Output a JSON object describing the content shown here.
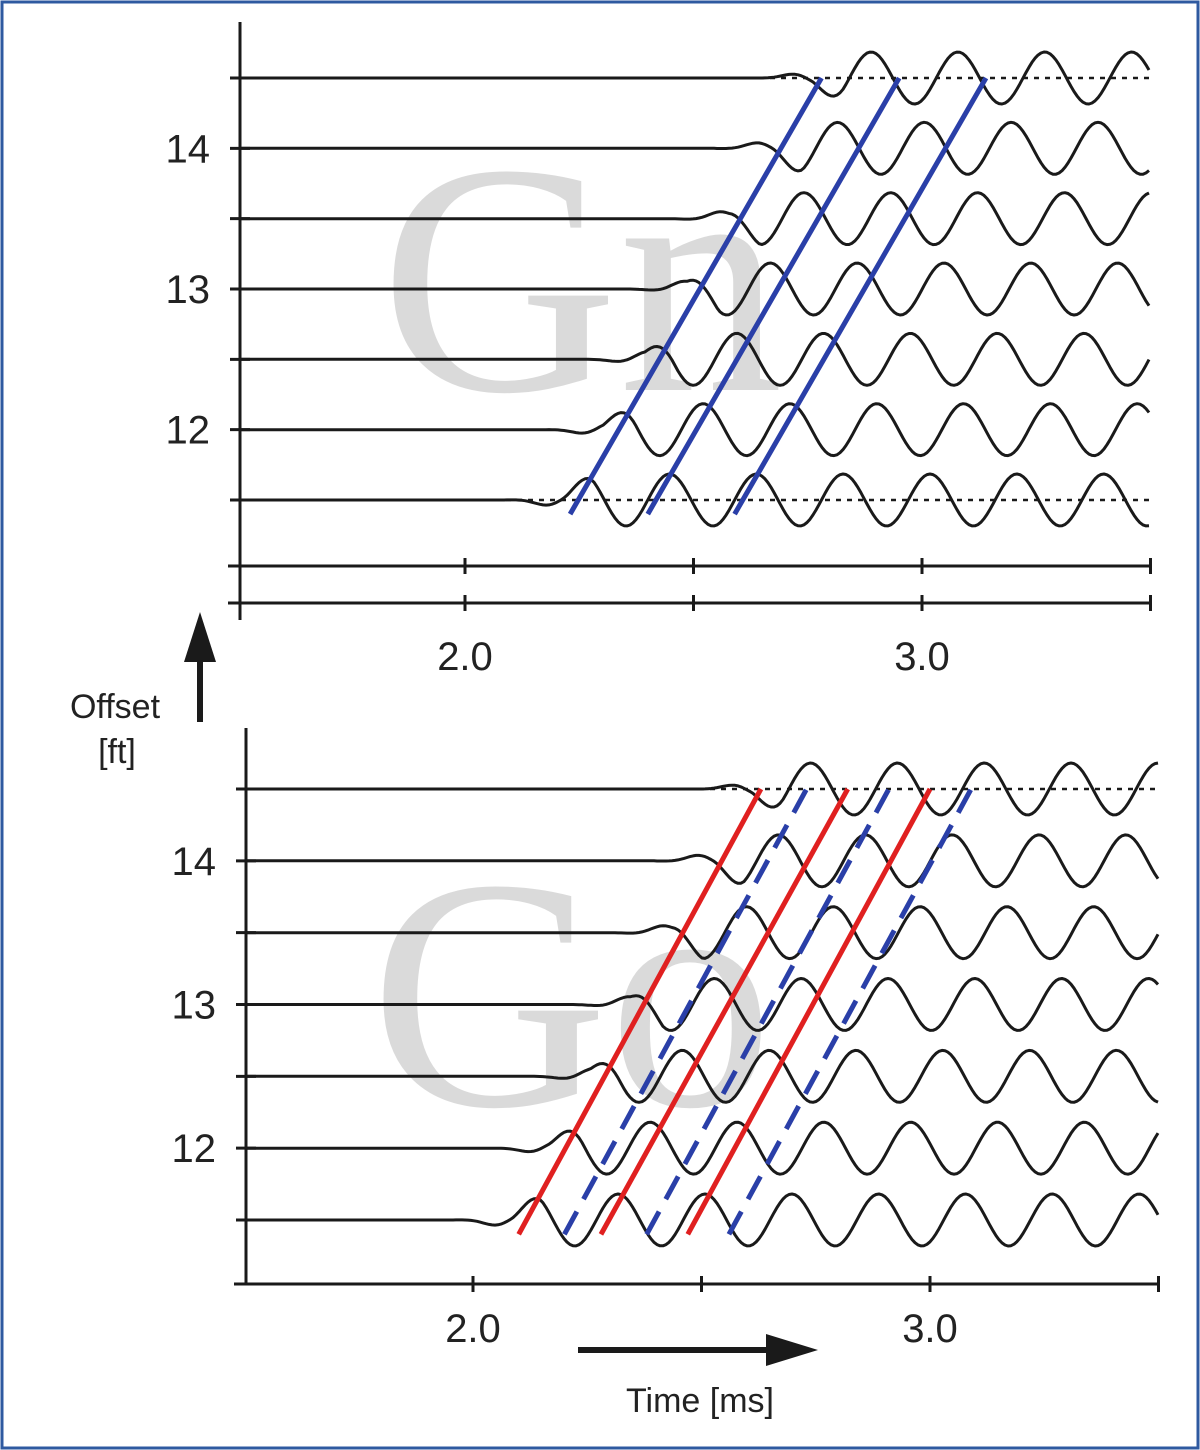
{
  "figure": {
    "offset_label": "Offset",
    "offset_unit": "[ft]",
    "time_label": "Time [ms]",
    "border_color": "#2f5aa0",
    "trace_color": "#1a1a1a",
    "solid_blue": "#2a3fa8",
    "solid_red": "#e02020",
    "dashed_blue": "#2a3fa8"
  },
  "chart_data": [
    {
      "type": "line",
      "panel": "top",
      "title": "",
      "xlabel": "Time [ms]",
      "ylabel": "Offset [ft]",
      "xlim": [
        1.55,
        3.55
      ],
      "ylim": [
        11.4,
        14.8
      ],
      "x_ticks": [
        2.0,
        3.0
      ],
      "x_tick_labels": [
        "2.0",
        "3.0"
      ],
      "y_ticks": [
        12,
        13,
        14
      ],
      "y_tick_labels": [
        "12",
        "13",
        "14"
      ],
      "trace_offsets": [
        11.5,
        12.0,
        12.5,
        13.0,
        13.5,
        14.0,
        14.5
      ],
      "reference_offsets": [
        11.5,
        14.5
      ],
      "moveout_lines_blue_solid": [
        {
          "t0": 2.23,
          "t1": 2.78
        },
        {
          "t0": 2.4,
          "t1": 2.95
        },
        {
          "t0": 2.59,
          "t1": 3.14
        }
      ],
      "moveout_lines_red_solid": [],
      "moveout_lines_blue_dashed": [],
      "ghost_letters": "Gn"
    },
    {
      "type": "line",
      "panel": "bottom",
      "title": "",
      "xlabel": "Time [ms]",
      "ylabel": "Offset [ft]",
      "xlim": [
        1.55,
        3.55
      ],
      "ylim": [
        11.4,
        14.8
      ],
      "x_ticks": [
        2.0,
        3.0
      ],
      "x_tick_labels": [
        "2.0",
        "3.0"
      ],
      "y_ticks": [
        12,
        13,
        14
      ],
      "y_tick_labels": [
        "12",
        "13",
        "14"
      ],
      "trace_offsets": [
        11.5,
        12.0,
        12.5,
        13.0,
        13.5,
        14.0,
        14.5
      ],
      "reference_offsets": [
        14.5
      ],
      "moveout_lines_blue_solid": [],
      "moveout_lines_red_solid": [
        {
          "t0": 2.1,
          "t1": 2.63
        },
        {
          "t0": 2.28,
          "t1": 2.82
        },
        {
          "t0": 2.47,
          "t1": 3.0
        }
      ],
      "moveout_lines_blue_dashed": [
        {
          "t0": 2.2,
          "t1": 2.73
        },
        {
          "t0": 2.38,
          "t1": 2.91
        },
        {
          "t0": 2.56,
          "t1": 3.09
        }
      ],
      "ghost_letters": "Go"
    }
  ]
}
